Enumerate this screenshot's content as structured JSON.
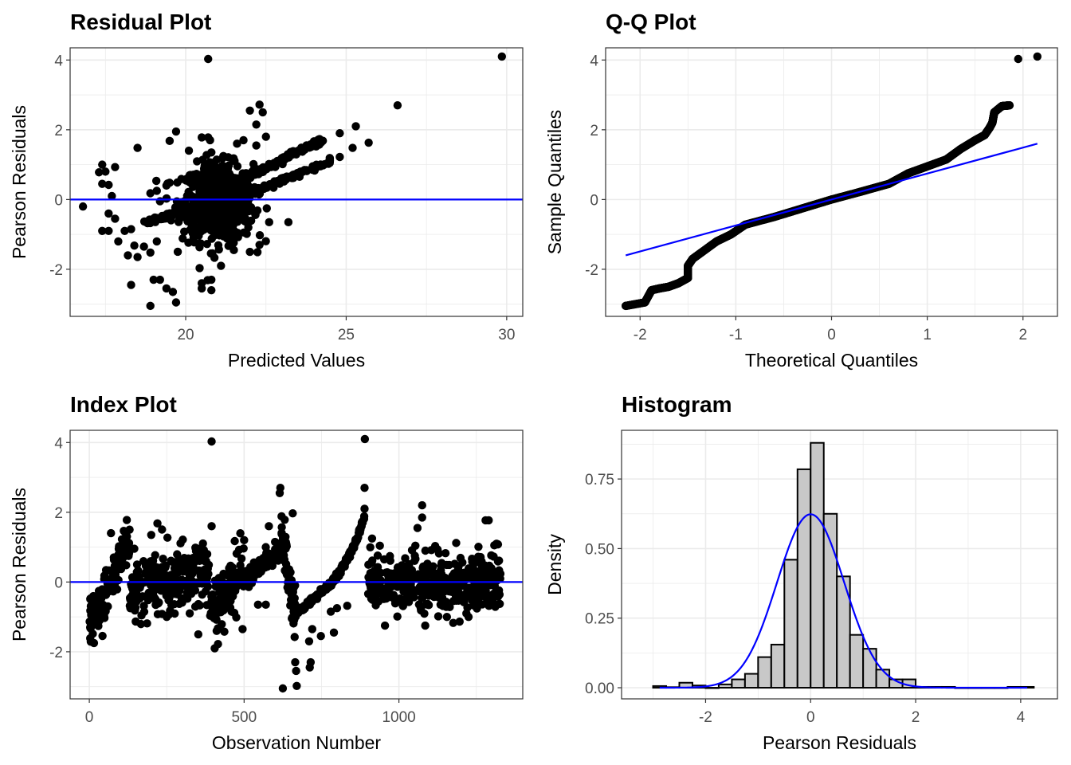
{
  "colors": {
    "point": "#000000",
    "refline": "#0000ff",
    "bar_fill": "#c8c8c8",
    "bar_stroke": "#000000",
    "grid": "#ebebeb",
    "panel_border": "#333333"
  },
  "chart_data": [
    {
      "id": "residual",
      "type": "scatter",
      "title": "Residual Plot",
      "xlabel": "Predicted Values",
      "ylabel": "Pearson Residuals",
      "xlim": [
        16.4,
        30.5
      ],
      "ylim": [
        -3.35,
        4.35
      ],
      "xticks": [
        20,
        25,
        30
      ],
      "xtick_labels": [
        "20",
        "25",
        "30"
      ],
      "yticks": [
        -2,
        0,
        2,
        4
      ],
      "ytick_labels": [
        "-2",
        "0",
        "2",
        "4"
      ],
      "hline": 0,
      "outliers": [
        [
          20.7,
          4.03
        ],
        [
          29.85,
          4.1
        ],
        [
          26.6,
          2.7
        ],
        [
          22.3,
          2.72
        ],
        [
          22.0,
          2.55
        ],
        [
          22.4,
          2.5
        ],
        [
          22.2,
          2.15
        ],
        [
          25.3,
          2.1
        ],
        [
          24.8,
          1.9
        ],
        [
          25.7,
          1.63
        ],
        [
          25.2,
          1.48
        ],
        [
          24.8,
          1.22
        ],
        [
          19.7,
          1.95
        ],
        [
          19.5,
          1.68
        ],
        [
          18.5,
          1.48
        ],
        [
          20.5,
          1.78
        ],
        [
          20.7,
          1.78
        ],
        [
          17.3,
          0.78
        ],
        [
          17.4,
          1.0
        ],
        [
          17.5,
          0.8
        ],
        [
          17.8,
          0.93
        ],
        [
          17.4,
          0.45
        ],
        [
          17.6,
          0.42
        ],
        [
          16.8,
          -0.2
        ],
        [
          17.6,
          -0.4
        ],
        [
          17.8,
          -0.55
        ],
        [
          17.6,
          -0.9
        ],
        [
          17.4,
          -0.9
        ],
        [
          18.1,
          -0.9
        ],
        [
          18.3,
          -0.85
        ],
        [
          17.9,
          -1.2
        ],
        [
          18.2,
          -1.6
        ],
        [
          18.4,
          -1.32
        ],
        [
          18.5,
          -1.65
        ],
        [
          18.7,
          -1.35
        ],
        [
          18.9,
          -1.52
        ],
        [
          19.1,
          -1.2
        ],
        [
          18.3,
          -2.45
        ],
        [
          19.0,
          -2.3
        ],
        [
          19.2,
          -2.3
        ],
        [
          19.4,
          -2.55
        ],
        [
          19.6,
          -2.65
        ],
        [
          18.9,
          -3.05
        ],
        [
          19.7,
          -2.95
        ],
        [
          20.5,
          -2.4
        ],
        [
          20.8,
          -2.3
        ],
        [
          20.8,
          -2.6
        ],
        [
          20.5,
          -2.55
        ],
        [
          21.1,
          -1.9
        ],
        [
          21.5,
          -1.45
        ],
        [
          22.0,
          -1.5
        ],
        [
          22.3,
          -1.3
        ],
        [
          22.6,
          -0.65
        ],
        [
          23.2,
          -0.65
        ],
        [
          18.9,
          0.18
        ],
        [
          19.1,
          0.25
        ],
        [
          19.4,
          0.4
        ],
        [
          19.5,
          0.48
        ],
        [
          19.2,
          -0.05
        ],
        [
          17.7,
          0.1
        ],
        [
          20.1,
          1.4
        ],
        [
          20.8,
          1.35
        ],
        [
          21.6,
          1.6
        ],
        [
          21.8,
          1.7
        ],
        [
          22.5,
          1.8
        ],
        [
          22.2,
          1.55
        ]
      ],
      "clusters": [
        {
          "name": "core",
          "x_center": 21.0,
          "x_spread": 0.55,
          "y_center": -0.1,
          "y_spread": 0.55,
          "n": 700
        },
        {
          "name": "upper-band",
          "x_from": 21.2,
          "x_to": 24.3,
          "y_from": 0.3,
          "y_to": 1.75,
          "n": 150
        },
        {
          "name": "lower-band",
          "x_from": 21.5,
          "x_to": 24.5,
          "y_from": 0.0,
          "y_to": 1.1,
          "n": 150
        },
        {
          "name": "left-band",
          "x_from": 18.7,
          "x_to": 20.3,
          "y_from": -0.7,
          "y_to": -0.15,
          "n": 60
        }
      ]
    },
    {
      "id": "qq",
      "type": "scatter",
      "title": "Q-Q Plot",
      "xlabel": "Theoretical Quantiles",
      "ylabel": "Sample Quantiles",
      "xlim": [
        -2.36,
        2.36
      ],
      "ylim": [
        -3.35,
        4.35
      ],
      "xticks": [
        -2,
        -1,
        0,
        1,
        2
      ],
      "xtick_labels": [
        "-2",
        "-1",
        "0",
        "1",
        "2"
      ],
      "yticks": [
        -2,
        0,
        2,
        4
      ],
      "ytick_labels": [
        "-2",
        "0",
        "2",
        "4"
      ],
      "refline": {
        "x": [
          -2.15,
          2.15
        ],
        "y": [
          -1.6,
          1.6
        ]
      },
      "curve": [
        [
          -2.15,
          -3.05
        ],
        [
          -1.95,
          -2.95
        ],
        [
          -1.88,
          -2.6
        ],
        [
          -1.8,
          -2.55
        ],
        [
          -1.7,
          -2.5
        ],
        [
          -1.6,
          -2.4
        ],
        [
          -1.5,
          -2.25
        ],
        [
          -1.5,
          -1.9
        ],
        [
          -1.45,
          -1.7
        ],
        [
          -1.35,
          -1.5
        ],
        [
          -1.2,
          -1.2
        ],
        [
          -1.05,
          -1.0
        ],
        [
          -0.9,
          -0.72
        ],
        [
          -0.6,
          -0.5
        ],
        [
          -0.3,
          -0.25
        ],
        [
          0.0,
          0.0
        ],
        [
          0.3,
          0.22
        ],
        [
          0.6,
          0.45
        ],
        [
          0.8,
          0.75
        ],
        [
          1.0,
          0.95
        ],
        [
          1.2,
          1.15
        ],
        [
          1.35,
          1.45
        ],
        [
          1.5,
          1.7
        ],
        [
          1.6,
          1.85
        ],
        [
          1.65,
          2.05
        ],
        [
          1.68,
          2.2
        ],
        [
          1.7,
          2.5
        ],
        [
          1.78,
          2.68
        ],
        [
          1.86,
          2.7
        ]
      ],
      "outliers": [
        [
          1.95,
          4.03
        ],
        [
          2.15,
          4.1
        ]
      ],
      "n": 1300
    },
    {
      "id": "index",
      "type": "scatter",
      "title": "Index Plot",
      "xlabel": "Observation Number",
      "ylabel": "Pearson Residuals",
      "xlim": [
        -62,
        1400
      ],
      "ylim": [
        -3.35,
        4.35
      ],
      "xticks": [
        0,
        500,
        1000
      ],
      "xtick_labels": [
        "0",
        "500",
        "1000"
      ],
      "yticks": [
        -2,
        0,
        2,
        4
      ],
      "ytick_labels": [
        "-2",
        "0",
        "2",
        "4"
      ],
      "hline": 0,
      "outliers": [
        [
          395,
          4.03
        ],
        [
          890,
          4.1
        ],
        [
          889,
          2.7
        ],
        [
          889,
          2.1
        ],
        [
          617,
          2.7
        ],
        [
          615,
          2.55
        ],
        [
          657,
          1.97
        ],
        [
          395,
          1.6
        ],
        [
          15,
          -1.75
        ],
        [
          200,
          1.35
        ],
        [
          220,
          1.68
        ],
        [
          70,
          1.4
        ],
        [
          130,
          1.5
        ],
        [
          352,
          -1.5
        ],
        [
          405,
          -1.9
        ],
        [
          625,
          -3.05
        ],
        [
          670,
          -2.98
        ],
        [
          665,
          -2.3
        ],
        [
          668,
          -2.55
        ],
        [
          715,
          -2.3
        ],
        [
          712,
          -2.45
        ],
        [
          720,
          -1.35
        ],
        [
          710,
          -1.7
        ],
        [
          748,
          -1.55
        ],
        [
          790,
          -1.45
        ],
        [
          780,
          -0.85
        ],
        [
          800,
          -0.75
        ],
        [
          833,
          -0.68
        ],
        [
          955,
          -1.25
        ],
        [
          995,
          -0.99
        ],
        [
          1085,
          -1.25
        ],
        [
          1075,
          2.2
        ],
        [
          1075,
          1.85
        ],
        [
          1060,
          1.55
        ],
        [
          1280,
          1.77
        ],
        [
          1290,
          1.77
        ],
        [
          1185,
          1.12
        ],
        [
          1320,
          1.08
        ],
        [
          1225,
          -1.0
        ],
        [
          1155,
          -1.0
        ],
        [
          500,
          1.2
        ],
        [
          495,
          -1.35
        ],
        [
          545,
          -0.65
        ],
        [
          570,
          -0.65
        ],
        [
          580,
          1.6
        ],
        [
          570,
          1.0
        ],
        [
          600,
          1.15
        ],
        [
          250,
          -1.0
        ]
      ],
      "segments": [
        {
          "x_from": 0,
          "x_to": 130,
          "y_from": -1.2,
          "y_to": 1.1,
          "spread": 0.35,
          "n": 130
        },
        {
          "x_from": 130,
          "x_to": 390,
          "y_from": -0.2,
          "y_to": 0.3,
          "spread": 0.45,
          "n": 260
        },
        {
          "x_from": 390,
          "x_to": 500,
          "y_from": -1.1,
          "y_to": 0.4,
          "spread": 0.4,
          "n": 110
        },
        {
          "x_from": 490,
          "x_to": 620,
          "y_from": 0.0,
          "y_to": 0.9,
          "spread": 0.12,
          "n": 130
        },
        {
          "x_from": 620,
          "x_to": 665,
          "y_from": 1.4,
          "y_to": -0.9,
          "spread": 0.35,
          "n": 60
        },
        {
          "x_from": 665,
          "x_to": 890,
          "y_from": -0.9,
          "y_to": 1.9,
          "spread": 0.04,
          "n": 230,
          "curved": true
        },
        {
          "x_from": 900,
          "x_to": 1330,
          "y_from": 0.0,
          "y_to": 0.0,
          "spread": 0.42,
          "n": 420
        }
      ]
    },
    {
      "id": "histogram",
      "type": "bar",
      "title": "Histogram",
      "xlabel": "Pearson Residuals",
      "ylabel": "Density",
      "xlim": [
        -3.6,
        4.7
      ],
      "ylim": [
        -0.04,
        0.925
      ],
      "xticks": [
        -2,
        0,
        2,
        4
      ],
      "xtick_labels": [
        "-2",
        "0",
        "2",
        "4"
      ],
      "yticks": [
        0,
        0.25,
        0.5,
        0.75
      ],
      "ytick_labels": [
        "0.00",
        "0.25",
        "0.50",
        "0.75"
      ],
      "binwidth": 0.25,
      "bin_centers": [
        -2.875,
        -2.625,
        -2.375,
        -2.125,
        -1.875,
        -1.625,
        -1.375,
        -1.125,
        -0.875,
        -0.625,
        -0.375,
        -0.125,
        0.125,
        0.375,
        0.625,
        0.875,
        1.125,
        1.375,
        1.625,
        1.875,
        2.125,
        2.375,
        2.625,
        2.875,
        3.125,
        3.375,
        3.625,
        3.875,
        4.125
      ],
      "density": [
        0.006,
        0.002,
        0.018,
        0.008,
        0.0,
        0.012,
        0.03,
        0.05,
        0.11,
        0.155,
        0.46,
        0.785,
        0.88,
        0.625,
        0.4,
        0.19,
        0.14,
        0.065,
        0.03,
        0.03,
        0.003,
        0.003,
        0.003,
        0.0,
        0.0,
        0.0,
        0.0,
        0.003,
        0.003
      ],
      "normal_curve": {
        "mean": 0.0,
        "sd": 0.64
      }
    }
  ]
}
